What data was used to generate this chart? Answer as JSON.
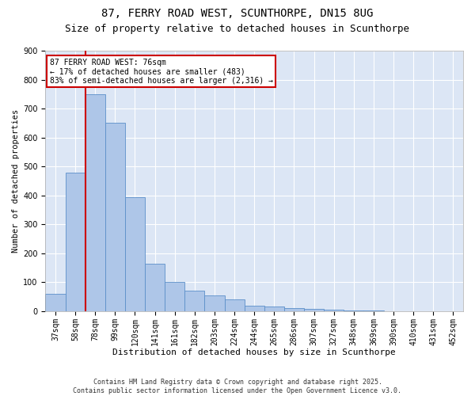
{
  "title1": "87, FERRY ROAD WEST, SCUNTHORPE, DN15 8UG",
  "title2": "Size of property relative to detached houses in Scunthorpe",
  "xlabel": "Distribution of detached houses by size in Scunthorpe",
  "ylabel": "Number of detached properties",
  "categories": [
    "37sqm",
    "58sqm",
    "78sqm",
    "99sqm",
    "120sqm",
    "141sqm",
    "161sqm",
    "182sqm",
    "203sqm",
    "224sqm",
    "244sqm",
    "265sqm",
    "286sqm",
    "307sqm",
    "327sqm",
    "348sqm",
    "369sqm",
    "390sqm",
    "410sqm",
    "431sqm",
    "452sqm"
  ],
  "values": [
    60,
    480,
    750,
    650,
    395,
    165,
    100,
    70,
    55,
    40,
    20,
    15,
    12,
    8,
    5,
    3,
    2,
    1,
    0.5,
    0.5,
    0.5
  ],
  "bar_color": "#aec6e8",
  "bar_edge_color": "#5b8fc9",
  "background_color": "#dce6f5",
  "grid_color": "#ffffff",
  "vline_x": 1.5,
  "vline_color": "#cc0000",
  "annotation_text": "87 FERRY ROAD WEST: 76sqm\n← 17% of detached houses are smaller (483)\n83% of semi-detached houses are larger (2,316) →",
  "annotation_box_color": "white",
  "annotation_box_edge": "#cc0000",
  "ylim": [
    0,
    900
  ],
  "yticks": [
    0,
    100,
    200,
    300,
    400,
    500,
    600,
    700,
    800,
    900
  ],
  "footer": "Contains HM Land Registry data © Crown copyright and database right 2025.\nContains public sector information licensed under the Open Government Licence v3.0.",
  "title1_fontsize": 10,
  "title2_fontsize": 9,
  "xlabel_fontsize": 8,
  "ylabel_fontsize": 7.5,
  "tick_fontsize": 7,
  "footer_fontsize": 6
}
